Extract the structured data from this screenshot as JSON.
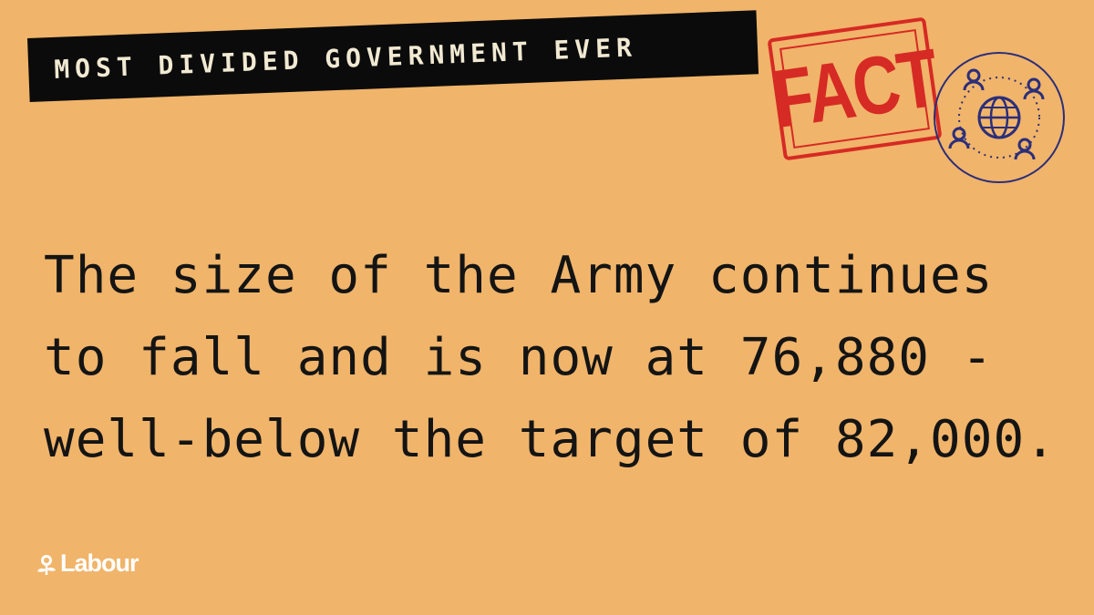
{
  "banner": {
    "text": "MOST DIVIDED GOVERNMENT EVER"
  },
  "stamp": {
    "text": "FACT",
    "color": "#d62a24"
  },
  "icons": {
    "globe": "globe-people-icon",
    "rose": "rose-icon"
  },
  "statement": {
    "lines": [
      "The size of the Army continues",
      "to fall and is now at 76,880 -",
      "well-below the target of 82,000."
    ]
  },
  "logo": {
    "text": "Labour"
  },
  "colors": {
    "background": "#f0b46a",
    "banner": "#0b0b0b",
    "text": "#141414",
    "icon_stroke": "#2b2e7a"
  }
}
